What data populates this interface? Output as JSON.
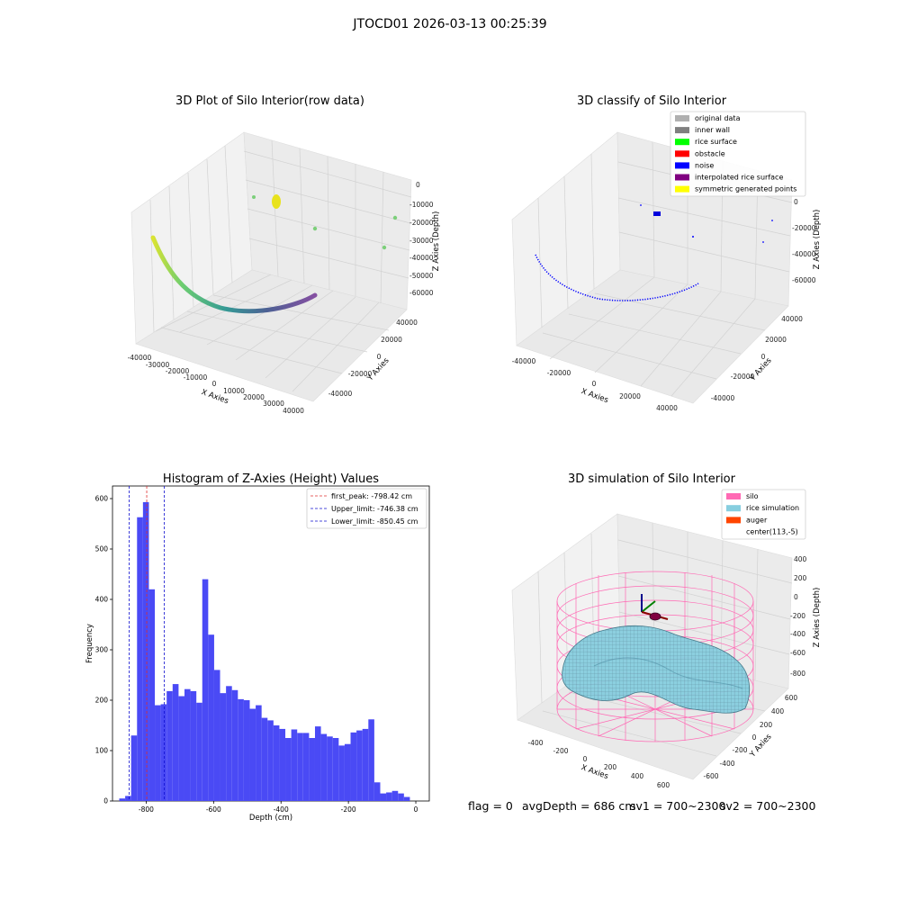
{
  "suptitle": "JTOCD01 2026-03-13 00:25:39",
  "colors": {
    "hist_bar": "#4a4af5",
    "first_peak": "#e03030",
    "limit": "#1010d0",
    "silo": "#ff69b4",
    "rice": "#87cedf",
    "auger": "#ff4500",
    "pane_grey": "#f2f2f2",
    "pane_grey_dark": "#e8e8e8"
  },
  "panels": {
    "raw": {
      "title": "3D Plot of Silo Interior(row data)",
      "xlabel": "X Axies",
      "ylabel": "Y Axies",
      "zlabel": "Z Axies (Depth)",
      "x_ticks": [
        "-40000",
        "-30000",
        "-20000",
        "-10000",
        "0",
        "10000",
        "20000",
        "30000",
        "40000"
      ],
      "y_ticks": [
        "-40000",
        "-20000",
        "0",
        "20000",
        "40000"
      ],
      "z_ticks": [
        "0",
        "-10000",
        "-20000",
        "-30000",
        "-40000",
        "-50000",
        "-60000"
      ]
    },
    "classify": {
      "title": "3D classify of Silo Interior",
      "xlabel": "X Axies",
      "ylabel": "Y Axies",
      "zlabel": "Z Axies (Depth)",
      "x_ticks": [
        "-40000",
        "-20000",
        "0",
        "20000",
        "40000"
      ],
      "y_ticks": [
        "-40000",
        "-20000",
        "0",
        "20000",
        "40000"
      ],
      "z_ticks": [
        "0",
        "-20000",
        "-40000",
        "-60000"
      ],
      "legend": [
        {
          "label": "original data",
          "color": "#b0b0b0"
        },
        {
          "label": "inner wall",
          "color": "#808080"
        },
        {
          "label": "rice surface",
          "color": "#00ff00"
        },
        {
          "label": "obstacle",
          "color": "#ff0000"
        },
        {
          "label": "noise",
          "color": "#0000ff"
        },
        {
          "label": "interpolated rice surface",
          "color": "#800080"
        },
        {
          "label": "symmetric generated points",
          "color": "#ffff00"
        }
      ]
    },
    "simulation": {
      "title": "3D simulation of Silo Interior",
      "xlabel": "X Axies",
      "ylabel": "Y Axies",
      "zlabel": "Z Axies (Depth)",
      "x_ticks": [
        "-400",
        "-200",
        "0",
        "200",
        "400",
        "600"
      ],
      "y_ticks": [
        "-600",
        "-400",
        "-200",
        "0",
        "200",
        "400",
        "600"
      ],
      "z_ticks": [
        "400",
        "200",
        "0",
        "-200",
        "-400",
        "-600",
        "-800"
      ],
      "legend": [
        {
          "label": "silo",
          "color": "#ff69b4"
        },
        {
          "label": "rice simulation",
          "color": "#87cedf"
        },
        {
          "label": "auger",
          "color": "#ff4500"
        },
        {
          "label": "center(113,-5)",
          "color": ""
        }
      ]
    }
  },
  "status": {
    "flag": "flag = 0",
    "avg_depth": "avgDepth = 686 cm",
    "sv1": "sv1 = 700~2300",
    "sv2": "sv2 = 700~2300"
  },
  "chart_data": [
    {
      "type": "histogram",
      "title": "Histogram of Z-Axies (Height) Values",
      "xlabel": "Depth (cm)",
      "ylabel": "Frequency",
      "xlim": [
        -900,
        40
      ],
      "ylim": [
        0,
        625
      ],
      "x_ticks": [
        -800,
        -600,
        -400,
        -200,
        0
      ],
      "y_ticks": [
        0,
        100,
        200,
        300,
        400,
        500,
        600
      ],
      "bin_start": -880,
      "bin_width": 17.6,
      "values": [
        5,
        10,
        130,
        563,
        593,
        420,
        190,
        192,
        218,
        232,
        208,
        222,
        218,
        195,
        440,
        330,
        260,
        214,
        228,
        220,
        202,
        200,
        183,
        190,
        165,
        160,
        150,
        143,
        125,
        142,
        135,
        135,
        125,
        148,
        133,
        128,
        125,
        110,
        113,
        136,
        140,
        143,
        162,
        37,
        15,
        17,
        20,
        15,
        8
      ],
      "vlines": [
        {
          "label": "first_peak: -798.42 cm",
          "x": -798.42,
          "color": "#e03030"
        },
        {
          "label": "Upper_limit: -746.38 cm",
          "x": -746.38,
          "color": "#1010d0"
        },
        {
          "label": "Lower_limit: -850.45 cm",
          "x": -850.45,
          "color": "#1010d0"
        }
      ],
      "legend_position": "upper right"
    }
  ]
}
